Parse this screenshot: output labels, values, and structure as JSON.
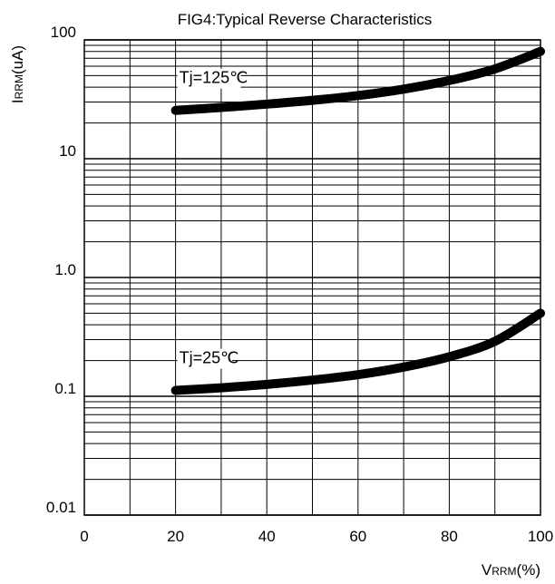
{
  "chart_data": {
    "type": "line",
    "title": "FIG4:Typical Reverse Characteristics",
    "ylabel_main": "I",
    "ylabel_sub": "RRM",
    "ylabel_unit": "(uA)",
    "xlabel_main": "V",
    "xlabel_sub": "RRM",
    "xlabel_unit": "(%)",
    "xlim": [
      0,
      100
    ],
    "ylim": [
      0.01,
      100
    ],
    "yscale": "log",
    "grid": true,
    "x_ticks": [
      0,
      20,
      40,
      60,
      80,
      100
    ],
    "x_tick_labels": [
      "0",
      "20",
      "40",
      "60",
      "80",
      "100"
    ],
    "y_ticks": [
      0.01,
      0.1,
      1,
      10,
      100
    ],
    "y_tick_labels": [
      "0.01",
      "0.1",
      "1.0",
      "10",
      "100"
    ],
    "series": [
      {
        "name": "Tj=125℃",
        "x": [
          20,
          30,
          40,
          50,
          60,
          70,
          80,
          90,
          100
        ],
        "y": [
          25.5,
          27.0,
          28.8,
          31.0,
          34.0,
          38.5,
          45.5,
          57.0,
          80.0
        ],
        "color": "#000000"
      },
      {
        "name": "Tj=25℃",
        "x": [
          20,
          30,
          40,
          50,
          60,
          70,
          80,
          90,
          100
        ],
        "y": [
          0.112,
          0.118,
          0.126,
          0.137,
          0.152,
          0.176,
          0.215,
          0.29,
          0.5
        ],
        "color": "#000000"
      }
    ]
  }
}
